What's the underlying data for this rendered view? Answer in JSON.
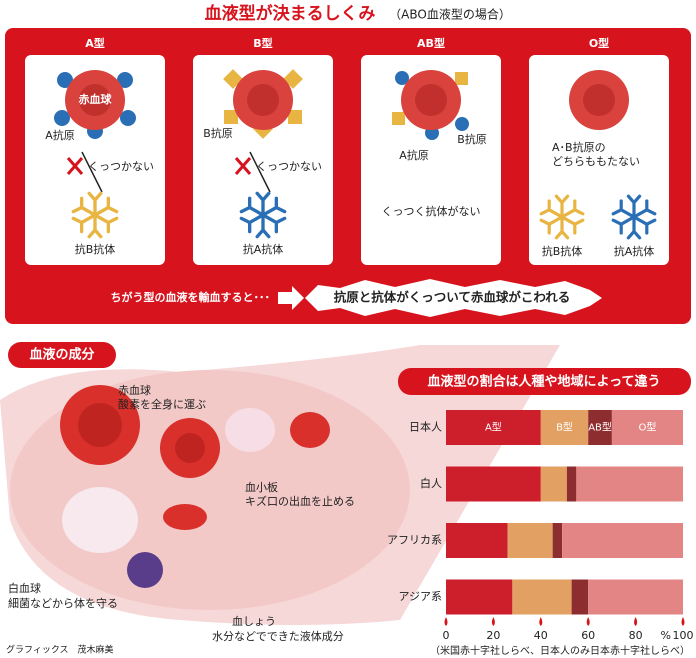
{
  "header": {
    "title": "血液型が決まるしくみ",
    "subtitle": "（ABO血液型の場合）"
  },
  "cards": [
    {
      "title": "A型",
      "cell": "赤血球",
      "antigen": "A抗原",
      "link": "くっつかない",
      "antibody": "抗B抗体"
    },
    {
      "title": "B型",
      "antigen": "B抗原",
      "link": "くっつかない",
      "antibody": "抗A抗体"
    },
    {
      "title": "AB型",
      "antigen_a": "A抗原",
      "antigen_b": "B抗原",
      "note": "くっつく抗体がない"
    },
    {
      "title": "O型",
      "note_lines": [
        "A･B抗原の",
        "どちらももたない"
      ],
      "antibodies": [
        "抗B抗体",
        "抗A抗体"
      ]
    }
  ],
  "transfusion": {
    "cause": "ちがう型の血液を輸血すると･･･",
    "result": "抗原と抗体がくっついて赤血球がこわれる"
  },
  "components": {
    "title": "血液の成分",
    "items": [
      {
        "name": "赤血球",
        "desc": "酸素を全身に運ぶ"
      },
      {
        "name": "血小板",
        "desc": "キズ口の出血を止める"
      },
      {
        "name": "白血球",
        "desc": "細菌などから体を守る"
      },
      {
        "name": "血しょう",
        "desc": "水分などでできた液体成分"
      }
    ]
  },
  "chart_data": {
    "type": "stacked-bar",
    "title": "血液型の割合は人種や地域によって違う",
    "categories": [
      "日本人",
      "白人",
      "アフリカ系",
      "アジア系"
    ],
    "series": [
      {
        "name": "A型",
        "color": "#cc1e2b",
        "values": [
          40,
          40,
          26,
          28
        ]
      },
      {
        "name": "B型",
        "color": "#e2a062",
        "values": [
          20,
          11,
          19,
          25
        ]
      },
      {
        "name": "AB型",
        "color": "#8e2d2f",
        "values": [
          10,
          4,
          4,
          7
        ]
      },
      {
        "name": "O型",
        "color": "#e48585",
        "values": [
          30,
          45,
          51,
          40
        ]
      }
    ],
    "xlim": [
      0,
      100
    ],
    "xticks": [
      0,
      20,
      40,
      60,
      80,
      100
    ],
    "x_unit": "%",
    "note": "（米国赤十字社しらべ、日本人のみ日本赤十字社しらべ）"
  },
  "credit": "グラフィックス　茂木麻美"
}
